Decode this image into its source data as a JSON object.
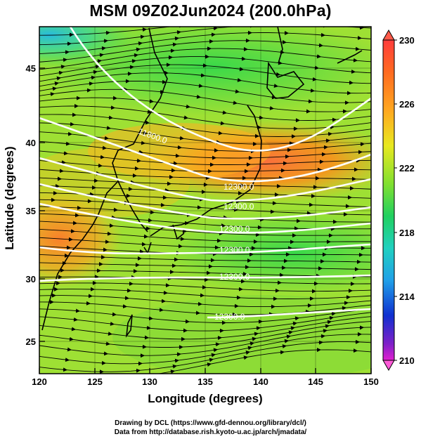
{
  "title": "MSM 09Z02Jun2024 (200.0hPa)",
  "axes": {
    "xlabel": "Longitude (degrees)",
    "ylabel": "Latitude  (degrees)",
    "x_ticks": [
      "120",
      "125",
      "130",
      "135",
      "140",
      "145",
      "150"
    ],
    "y_ticks": [
      "45",
      "40",
      "35",
      "30",
      "25"
    ]
  },
  "colorbar": {
    "labels": [
      "230",
      "226",
      "222",
      "218",
      "214",
      "210"
    ],
    "colors": [
      "#ff6a3c",
      "#ff8c1a",
      "#f5e81a",
      "#2fd84a",
      "#20c0d8",
      "#1038d8",
      "#d020d0"
    ]
  },
  "contour_labels": [
    "11800.0",
    "12300.0",
    "12300.0",
    "12300.0",
    "12300.0",
    "12300.0",
    "12300.0"
  ],
  "credits": {
    "line1": "Drawing by DCL (https://www.gfd-dennou.org/library/dcl/)",
    "line2": "Data from http://database.rish.kyoto-u.ac.jp/arch/jmadata/"
  },
  "chart_data": {
    "type": "heatmap",
    "title": "MSM 09Z02Jun2024 (200.0hPa)",
    "xlabel": "Longitude (degrees)",
    "ylabel": "Latitude  (degrees)",
    "xlim": [
      120,
      150
    ],
    "ylim": [
      22.5,
      47.5
    ],
    "x_ticks": [
      120,
      125,
      130,
      135,
      140,
      145,
      150
    ],
    "y_ticks": [
      25,
      30,
      35,
      40,
      45
    ],
    "colorbar_range": [
      210,
      230
    ],
    "colorbar_ticks": [
      230,
      226,
      222,
      218,
      214,
      210
    ],
    "grid": true,
    "contour_labels": [
      "11800.0",
      "12300.0"
    ],
    "temperature_field": [
      {
        "lon": 121,
        "lat": 46.5,
        "value": 218
      },
      {
        "lon": 135,
        "lat": 46,
        "value": 222.5
      },
      {
        "lon": 124,
        "lat": 41,
        "value": 224
      },
      {
        "lon": 141,
        "lat": 38.5,
        "value": 227.5
      },
      {
        "lon": 148,
        "lat": 41,
        "value": 226.5
      },
      {
        "lon": 122,
        "lat": 32.5,
        "value": 226.5
      },
      {
        "lon": 140,
        "lat": 32,
        "value": 222.5
      },
      {
        "lon": 132,
        "lat": 25,
        "value": 223.5
      },
      {
        "lon": 145,
        "lat": 26,
        "value": 223
      }
    ]
  }
}
